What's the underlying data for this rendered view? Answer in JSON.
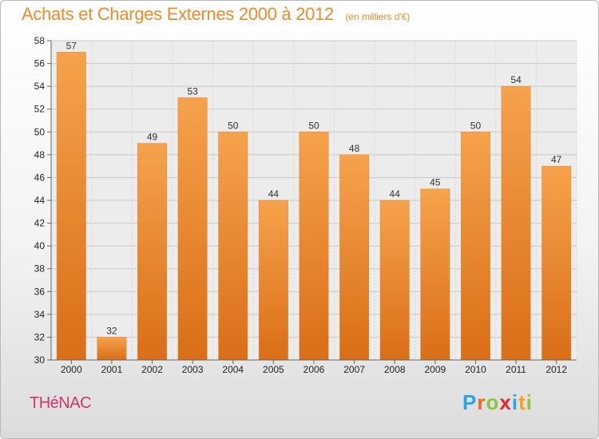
{
  "header": {
    "title": "Achats et Charges Externes 2000 à 2012",
    "subtitle": "(en milliers d'€)"
  },
  "place_label": "THéNAC",
  "logo": {
    "letters": [
      "P",
      "r",
      "o",
      "x",
      "i",
      "t",
      "i"
    ],
    "colors": [
      "#2aa6e0",
      "#f26a1b",
      "#8cc63f",
      "#e8262d",
      "#2aa6e0",
      "#f9a01b",
      "#8cc63f"
    ]
  },
  "chart_data": {
    "type": "bar",
    "title": "Achats et Charges Externes 2000 à 2012",
    "subtitle": "(en milliers d'€)",
    "xlabel": "",
    "ylabel": "",
    "categories": [
      "2000",
      "2001",
      "2002",
      "2003",
      "2004",
      "2005",
      "2006",
      "2007",
      "2008",
      "2009",
      "2010",
      "2011",
      "2012"
    ],
    "values": [
      57,
      32,
      49,
      53,
      50,
      44,
      50,
      48,
      44,
      45,
      50,
      54,
      47
    ],
    "ylim": [
      30,
      58
    ],
    "yticks": [
      30,
      32,
      34,
      36,
      38,
      40,
      42,
      44,
      46,
      48,
      50,
      52,
      54,
      56,
      58
    ],
    "grid": true,
    "legend": "none",
    "bar_color": "#f39a3c"
  }
}
